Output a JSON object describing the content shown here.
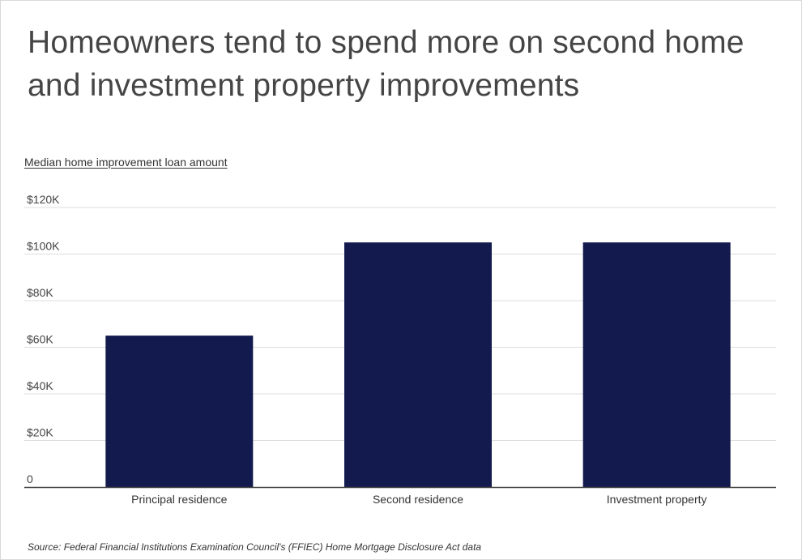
{
  "title": "Homeowners tend to spend more on second home and investment property improvements",
  "source": "Source:  Federal Financial Institutions Examination Council's (FFIEC) Home Mortgage Disclosure Act data",
  "colors": {
    "bar": "#131a4d",
    "grid": "#dddddd",
    "axis": "#444444",
    "text": "#444444"
  },
  "chart_data": {
    "type": "bar",
    "title": "Homeowners tend to spend more on second home and investment property improvements",
    "xlabel": "",
    "ylabel": "Median home improvement loan amount",
    "categories": [
      "Principal residence",
      "Second residence",
      "Investment property"
    ],
    "values": [
      65000,
      105000,
      105000
    ],
    "ylim": [
      0,
      120000
    ],
    "yticks": [
      0,
      20000,
      40000,
      60000,
      80000,
      100000,
      120000
    ],
    "ytick_labels": [
      "0",
      "$20K",
      "$40K",
      "$60K",
      "$80K",
      "$100K",
      "$120K"
    ],
    "grid": true,
    "legend": "none"
  }
}
